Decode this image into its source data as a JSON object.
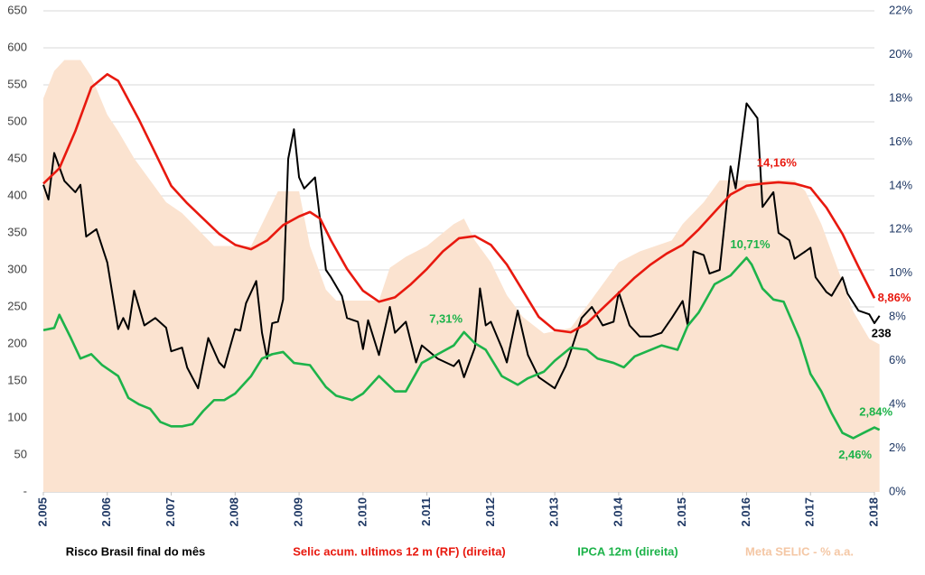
{
  "chart_data": {
    "type": "line",
    "xlim": [
      2005,
      2018
    ],
    "xticks": [
      {
        "value": 2005,
        "label": "2.005"
      },
      {
        "value": 2006,
        "label": "2.006"
      },
      {
        "value": 2007,
        "label": "2.007"
      },
      {
        "value": 2008,
        "label": "2.008"
      },
      {
        "value": 2009,
        "label": "2.009"
      },
      {
        "value": 2010,
        "label": "2.010"
      },
      {
        "value": 2011,
        "label": "2.011"
      },
      {
        "value": 2012,
        "label": "2.012"
      },
      {
        "value": 2013,
        "label": "2.013"
      },
      {
        "value": 2014,
        "label": "2.014"
      },
      {
        "value": 2015,
        "label": "2.015"
      },
      {
        "value": 2016,
        "label": "2.016"
      },
      {
        "value": 2017,
        "label": "2.017"
      },
      {
        "value": 2018,
        "label": "2.018"
      }
    ],
    "ylim": [
      0,
      650
    ],
    "yticks": [
      {
        "value": 0,
        "label": "-"
      },
      50,
      100,
      150,
      200,
      250,
      300,
      350,
      400,
      450,
      500,
      550,
      600,
      650
    ],
    "y2lim": [
      0,
      22
    ],
    "y2ticks": [
      {
        "value": 0,
        "label": "0%"
      },
      {
        "value": 2,
        "label": "2%"
      },
      {
        "value": 4,
        "label": "4%"
      },
      {
        "value": 6,
        "label": "6%"
      },
      {
        "value": 8,
        "label": "8%"
      },
      {
        "value": 10,
        "label": "10%"
      },
      {
        "value": 12,
        "label": "12%"
      },
      {
        "value": 14,
        "label": "14%"
      },
      {
        "value": 16,
        "label": "16%"
      },
      {
        "value": 18,
        "label": "18%"
      },
      {
        "value": 20,
        "label": "20%"
      },
      {
        "value": 22,
        "label": "22%"
      }
    ],
    "grid": true,
    "series": [
      {
        "name": "Meta SELIC - % a.a.",
        "kind": "area",
        "axis": "y2",
        "color": "#fbe3d0",
        "legend_color": "#f4c7a5",
        "x": [
          2005.0,
          2005.17,
          2005.33,
          2005.58,
          2005.75,
          2006.0,
          2006.17,
          2006.42,
          2006.67,
          2006.92,
          2007.17,
          2007.42,
          2007.67,
          2008.25,
          2008.42,
          2008.67,
          2009.0,
          2009.17,
          2009.42,
          2009.58,
          2010.25,
          2010.42,
          2010.67,
          2011.0,
          2011.42,
          2011.58,
          2011.75,
          2012.0,
          2012.25,
          2012.5,
          2012.83,
          2013.25,
          2013.5,
          2013.75,
          2014.0,
          2014.33,
          2014.83,
          2015.0,
          2015.33,
          2015.58,
          2016.75,
          2016.92,
          2017.17,
          2017.42,
          2017.67,
          2017.92,
          2018.08
        ],
        "values": [
          18.0,
          19.25,
          19.75,
          19.75,
          19.0,
          17.25,
          16.5,
          15.25,
          14.25,
          13.25,
          12.75,
          12.0,
          11.25,
          11.25,
          12.25,
          13.75,
          13.75,
          11.25,
          9.25,
          8.75,
          8.75,
          10.25,
          10.75,
          11.25,
          12.25,
          12.5,
          11.5,
          10.5,
          9.0,
          8.0,
          7.25,
          7.5,
          8.5,
          9.5,
          10.5,
          11.0,
          11.5,
          12.25,
          13.25,
          14.25,
          14.25,
          13.75,
          12.25,
          10.25,
          8.25,
          7.0,
          6.75
        ]
      },
      {
        "name": "Risco Brasil final do mês",
        "kind": "line",
        "axis": "y",
        "color": "#000000",
        "legend_color": "#000000",
        "x": [
          2005.0,
          2005.08,
          2005.17,
          2005.33,
          2005.5,
          2005.58,
          2005.67,
          2005.83,
          2006.0,
          2006.17,
          2006.25,
          2006.33,
          2006.42,
          2006.58,
          2006.75,
          2006.92,
          2007.0,
          2007.17,
          2007.25,
          2007.42,
          2007.58,
          2007.75,
          2007.83,
          2008.0,
          2008.08,
          2008.17,
          2008.33,
          2008.42,
          2008.5,
          2008.58,
          2008.67,
          2008.75,
          2008.83,
          2008.92,
          2009.0,
          2009.08,
          2009.25,
          2009.42,
          2009.5,
          2009.67,
          2009.75,
          2009.92,
          2010.0,
          2010.08,
          2010.25,
          2010.42,
          2010.5,
          2010.67,
          2010.83,
          2010.92,
          2011.17,
          2011.42,
          2011.5,
          2011.58,
          2011.75,
          2011.83,
          2011.92,
          2012.0,
          2012.17,
          2012.25,
          2012.42,
          2012.58,
          2012.75,
          2013.0,
          2013.17,
          2013.25,
          2013.42,
          2013.58,
          2013.75,
          2013.92,
          2014.0,
          2014.17,
          2014.33,
          2014.5,
          2014.67,
          2014.83,
          2015.0,
          2015.08,
          2015.17,
          2015.33,
          2015.42,
          2015.58,
          2015.75,
          2015.83,
          2016.0,
          2016.17,
          2016.25,
          2016.42,
          2016.5,
          2016.67,
          2016.75,
          2016.92,
          2017.0,
          2017.08,
          2017.25,
          2017.33,
          2017.5,
          2017.58,
          2017.75,
          2017.92,
          2018.0,
          2018.08
        ],
        "values": [
          415,
          395,
          458,
          420,
          405,
          415,
          345,
          355,
          310,
          220,
          235,
          220,
          272,
          225,
          235,
          222,
          190,
          195,
          168,
          140,
          208,
          175,
          168,
          220,
          218,
          255,
          285,
          215,
          180,
          228,
          230,
          260,
          450,
          490,
          425,
          410,
          425,
          300,
          290,
          265,
          235,
          230,
          193,
          232,
          185,
          250,
          215,
          230,
          175,
          198,
          180,
          170,
          178,
          155,
          195,
          275,
          225,
          230,
          195,
          175,
          245,
          185,
          155,
          140,
          170,
          190,
          235,
          250,
          225,
          230,
          270,
          225,
          210,
          210,
          215,
          235,
          258,
          225,
          325,
          320,
          295,
          300,
          440,
          410,
          525,
          505,
          385,
          405,
          350,
          340,
          315,
          325,
          330,
          290,
          270,
          265,
          290,
          268,
          245,
          240,
          228,
          238
        ],
        "value_labels": [
          {
            "x": 2018.08,
            "value": 238,
            "label": "238"
          }
        ]
      },
      {
        "name": "Selic acum. ultimos 12 m (RF) (direita)",
        "kind": "line",
        "axis": "y2",
        "color": "#e8190f",
        "legend_color": "#e8190f",
        "x": [
          2005.0,
          2005.25,
          2005.5,
          2005.75,
          2006.0,
          2006.17,
          2006.5,
          2006.75,
          2007.0,
          2007.25,
          2007.5,
          2007.75,
          2008.0,
          2008.25,
          2008.5,
          2008.75,
          2009.0,
          2009.17,
          2009.33,
          2009.5,
          2009.75,
          2010.0,
          2010.25,
          2010.5,
          2010.75,
          2011.0,
          2011.25,
          2011.5,
          2011.75,
          2012.0,
          2012.25,
          2012.5,
          2012.75,
          2013.0,
          2013.25,
          2013.5,
          2013.75,
          2014.0,
          2014.25,
          2014.5,
          2014.75,
          2015.0,
          2015.25,
          2015.5,
          2015.75,
          2016.0,
          2016.25,
          2016.5,
          2016.75,
          2017.0,
          2017.25,
          2017.5,
          2017.75,
          2018.0
        ],
        "values": [
          14.1,
          14.8,
          16.5,
          18.5,
          19.1,
          18.8,
          17.0,
          15.5,
          14.0,
          13.2,
          12.5,
          11.8,
          11.3,
          11.1,
          11.5,
          12.2,
          12.6,
          12.8,
          12.5,
          11.5,
          10.2,
          9.2,
          8.7,
          8.9,
          9.5,
          10.2,
          11.0,
          11.6,
          11.7,
          11.3,
          10.4,
          9.2,
          8.0,
          7.4,
          7.3,
          7.7,
          8.4,
          9.1,
          9.8,
          10.4,
          10.9,
          11.3,
          12.0,
          12.8,
          13.6,
          14.0,
          14.1,
          14.16,
          14.1,
          13.9,
          13.0,
          11.8,
          10.3,
          8.86
        ],
        "value_labels": [
          {
            "x": 2016.5,
            "value": 14.16,
            "label": "14,16%"
          },
          {
            "x": 2018.0,
            "value": 8.86,
            "label": "8,86%"
          }
        ]
      },
      {
        "name": "IPCA 12m (direita)",
        "kind": "line",
        "axis": "y2",
        "color": "#1db34a",
        "legend_color": "#1db34a",
        "x": [
          2005.0,
          2005.17,
          2005.25,
          2005.42,
          2005.58,
          2005.75,
          2005.92,
          2006.17,
          2006.33,
          2006.5,
          2006.67,
          2006.83,
          2007.0,
          2007.17,
          2007.33,
          2007.5,
          2007.67,
          2007.83,
          2008.0,
          2008.25,
          2008.42,
          2008.58,
          2008.75,
          2008.92,
          2009.17,
          2009.42,
          2009.58,
          2009.83,
          2010.0,
          2010.25,
          2010.5,
          2010.67,
          2010.92,
          2011.17,
          2011.42,
          2011.58,
          2011.75,
          2011.92,
          2012.17,
          2012.42,
          2012.58,
          2012.83,
          2013.0,
          2013.25,
          2013.5,
          2013.67,
          2013.92,
          2014.08,
          2014.25,
          2014.5,
          2014.67,
          2014.92,
          2015.08,
          2015.25,
          2015.5,
          2015.75,
          2016.0,
          2016.08,
          2016.25,
          2016.42,
          2016.58,
          2016.83,
          2017.0,
          2017.17,
          2017.33,
          2017.5,
          2017.67,
          2017.83,
          2018.0,
          2018.08
        ],
        "values": [
          7.4,
          7.5,
          8.1,
          7.1,
          6.1,
          6.3,
          5.8,
          5.3,
          4.3,
          4.0,
          3.8,
          3.2,
          3.0,
          3.0,
          3.1,
          3.7,
          4.2,
          4.2,
          4.5,
          5.3,
          6.1,
          6.3,
          6.4,
          5.9,
          5.8,
          4.8,
          4.4,
          4.2,
          4.5,
          5.3,
          4.6,
          4.6,
          5.9,
          6.3,
          6.7,
          7.31,
          6.8,
          6.5,
          5.3,
          4.9,
          5.2,
          5.5,
          6.0,
          6.6,
          6.5,
          6.1,
          5.9,
          5.7,
          6.2,
          6.5,
          6.7,
          6.5,
          7.6,
          8.2,
          9.5,
          9.9,
          10.71,
          10.4,
          9.3,
          8.8,
          8.7,
          7.0,
          5.4,
          4.6,
          3.6,
          2.7,
          2.46,
          2.7,
          2.95,
          2.84
        ],
        "value_labels": [
          {
            "x": 2011.58,
            "value": 7.31,
            "label": "7,31%"
          },
          {
            "x": 2016.0,
            "value": 10.71,
            "label": "10,71%"
          },
          {
            "x": 2018.08,
            "value": 2.84,
            "label": "2,84%"
          },
          {
            "x": 2017.67,
            "value": 2.46,
            "label": "2,46%"
          }
        ]
      }
    ]
  }
}
